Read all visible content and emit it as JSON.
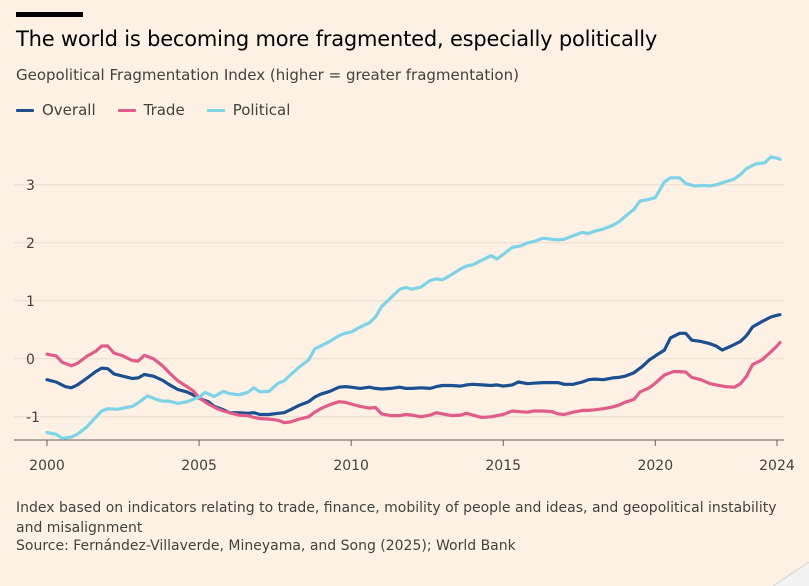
{
  "header": {
    "title": "The world is becoming more fragmented, especially politically",
    "subtitle": "Geopolitical Fragmentation Index (higher = greater fragmentation)"
  },
  "footer": {
    "note": "Index based on indicators relating to trade, finance, mobility of people and ideas, and geopolitical instability and misalignment",
    "source": "Source: Fernández-Villaverde, Mineyama, and Song (2025); World Bank"
  },
  "chart_data": {
    "type": "line",
    "xlim": [
      2000,
      2024.1
    ],
    "ylim": [
      -1.4,
      3.6
    ],
    "x_ticks": [
      2000,
      2005,
      2010,
      2015,
      2020,
      2024
    ],
    "x_tick_labels": [
      "2000",
      "2005",
      "2010",
      "2015",
      "2020",
      "2024"
    ],
    "y_ticks": [
      -1,
      0,
      1,
      2,
      3
    ],
    "y_tick_labels": [
      "-1",
      "0",
      "1",
      "2",
      "3"
    ],
    "grid": "horizontal",
    "legend_position": "top-left",
    "series": [
      {
        "name": "Overall",
        "color": "#1c4f8f",
        "points": [
          [
            2000,
            -0.36
          ],
          [
            2000.3,
            -0.4
          ],
          [
            2000.6,
            -0.48
          ],
          [
            2000.8,
            -0.5
          ],
          [
            2001,
            -0.45
          ],
          [
            2001.3,
            -0.34
          ],
          [
            2001.6,
            -0.22
          ],
          [
            2001.8,
            -0.16
          ],
          [
            2002,
            -0.17
          ],
          [
            2002.2,
            -0.26
          ],
          [
            2002.5,
            -0.3
          ],
          [
            2002.8,
            -0.34
          ],
          [
            2003,
            -0.33
          ],
          [
            2003.2,
            -0.27
          ],
          [
            2003.5,
            -0.3
          ],
          [
            2003.8,
            -0.37
          ],
          [
            2004,
            -0.44
          ],
          [
            2004.3,
            -0.53
          ],
          [
            2004.6,
            -0.57
          ],
          [
            2004.8,
            -0.62
          ],
          [
            2005,
            -0.68
          ],
          [
            2005.3,
            -0.74
          ],
          [
            2005.5,
            -0.82
          ],
          [
            2005.8,
            -0.88
          ],
          [
            2006,
            -0.93
          ],
          [
            2006.3,
            -0.93
          ],
          [
            2006.6,
            -0.94
          ],
          [
            2006.8,
            -0.93
          ],
          [
            2007,
            -0.96
          ],
          [
            2007.3,
            -0.96
          ],
          [
            2007.6,
            -0.94
          ],
          [
            2007.8,
            -0.93
          ],
          [
            2008,
            -0.88
          ],
          [
            2008.3,
            -0.8
          ],
          [
            2008.6,
            -0.74
          ],
          [
            2008.8,
            -0.66
          ],
          [
            2009,
            -0.61
          ],
          [
            2009.3,
            -0.56
          ],
          [
            2009.6,
            -0.49
          ],
          [
            2009.8,
            -0.48
          ],
          [
            2010,
            -0.49
          ],
          [
            2010.3,
            -0.51
          ],
          [
            2010.6,
            -0.49
          ],
          [
            2010.8,
            -0.51
          ],
          [
            2011,
            -0.52
          ],
          [
            2011.3,
            -0.51
          ],
          [
            2011.6,
            -0.49
          ],
          [
            2011.8,
            -0.51
          ],
          [
            2012,
            -0.51
          ],
          [
            2012.3,
            -0.5
          ],
          [
            2012.6,
            -0.51
          ],
          [
            2012.8,
            -0.48
          ],
          [
            2013,
            -0.46
          ],
          [
            2013.3,
            -0.46
          ],
          [
            2013.6,
            -0.47
          ],
          [
            2013.8,
            -0.45
          ],
          [
            2014,
            -0.44
          ],
          [
            2014.3,
            -0.45
          ],
          [
            2014.6,
            -0.46
          ],
          [
            2014.8,
            -0.45
          ],
          [
            2015,
            -0.47
          ],
          [
            2015.3,
            -0.45
          ],
          [
            2015.5,
            -0.4
          ],
          [
            2015.8,
            -0.43
          ],
          [
            2016,
            -0.42
          ],
          [
            2016.3,
            -0.41
          ],
          [
            2016.6,
            -0.41
          ],
          [
            2016.8,
            -0.41
          ],
          [
            2017,
            -0.44
          ],
          [
            2017.3,
            -0.44
          ],
          [
            2017.6,
            -0.4
          ],
          [
            2017.8,
            -0.36
          ],
          [
            2018,
            -0.35
          ],
          [
            2018.3,
            -0.36
          ],
          [
            2018.6,
            -0.33
          ],
          [
            2018.8,
            -0.32
          ],
          [
            2019,
            -0.3
          ],
          [
            2019.3,
            -0.24
          ],
          [
            2019.6,
            -0.12
          ],
          [
            2019.8,
            -0.02
          ],
          [
            2020,
            0.05
          ],
          [
            2020.3,
            0.15
          ],
          [
            2020.5,
            0.36
          ],
          [
            2020.8,
            0.44
          ],
          [
            2021,
            0.44
          ],
          [
            2021.2,
            0.32
          ],
          [
            2021.5,
            0.3
          ],
          [
            2021.8,
            0.26
          ],
          [
            2022,
            0.22
          ],
          [
            2022.2,
            0.15
          ],
          [
            2022.5,
            0.22
          ],
          [
            2022.8,
            0.3
          ],
          [
            2023,
            0.4
          ],
          [
            2023.2,
            0.55
          ],
          [
            2023.5,
            0.64
          ],
          [
            2023.8,
            0.72
          ],
          [
            2024,
            0.75
          ],
          [
            2024.1,
            0.76
          ]
        ]
      },
      {
        "name": "Trade",
        "color": "#e05d8a",
        "points": [
          [
            2000,
            0.08
          ],
          [
            2000.3,
            0.05
          ],
          [
            2000.5,
            -0.06
          ],
          [
            2000.8,
            -0.12
          ],
          [
            2001,
            -0.08
          ],
          [
            2001.3,
            0.04
          ],
          [
            2001.6,
            0.13
          ],
          [
            2001.8,
            0.22
          ],
          [
            2002,
            0.22
          ],
          [
            2002.2,
            0.1
          ],
          [
            2002.5,
            0.05
          ],
          [
            2002.8,
            -0.03
          ],
          [
            2003,
            -0.04
          ],
          [
            2003.2,
            0.06
          ],
          [
            2003.5,
            0.0
          ],
          [
            2003.8,
            -0.12
          ],
          [
            2004,
            -0.23
          ],
          [
            2004.3,
            -0.38
          ],
          [
            2004.6,
            -0.48
          ],
          [
            2004.8,
            -0.55
          ],
          [
            2005,
            -0.67
          ],
          [
            2005.3,
            -0.78
          ],
          [
            2005.6,
            -0.86
          ],
          [
            2005.8,
            -0.9
          ],
          [
            2006,
            -0.93
          ],
          [
            2006.3,
            -0.97
          ],
          [
            2006.6,
            -0.98
          ],
          [
            2006.8,
            -1.01
          ],
          [
            2007,
            -1.03
          ],
          [
            2007.3,
            -1.04
          ],
          [
            2007.6,
            -1.06
          ],
          [
            2007.8,
            -1.1
          ],
          [
            2008,
            -1.09
          ],
          [
            2008.3,
            -1.04
          ],
          [
            2008.6,
            -1.0
          ],
          [
            2008.8,
            -0.92
          ],
          [
            2009,
            -0.86
          ],
          [
            2009.3,
            -0.79
          ],
          [
            2009.6,
            -0.74
          ],
          [
            2009.8,
            -0.75
          ],
          [
            2010,
            -0.78
          ],
          [
            2010.3,
            -0.82
          ],
          [
            2010.6,
            -0.85
          ],
          [
            2010.8,
            -0.84
          ],
          [
            2011,
            -0.95
          ],
          [
            2011.3,
            -0.98
          ],
          [
            2011.6,
            -0.98
          ],
          [
            2011.8,
            -0.96
          ],
          [
            2012,
            -0.97
          ],
          [
            2012.3,
            -1.0
          ],
          [
            2012.6,
            -0.97
          ],
          [
            2012.8,
            -0.93
          ],
          [
            2013,
            -0.95
          ],
          [
            2013.3,
            -0.98
          ],
          [
            2013.6,
            -0.97
          ],
          [
            2013.8,
            -0.94
          ],
          [
            2014,
            -0.97
          ],
          [
            2014.3,
            -1.01
          ],
          [
            2014.6,
            -1.0
          ],
          [
            2014.8,
            -0.98
          ],
          [
            2015,
            -0.96
          ],
          [
            2015.3,
            -0.9
          ],
          [
            2015.5,
            -0.91
          ],
          [
            2015.8,
            -0.92
          ],
          [
            2016,
            -0.9
          ],
          [
            2016.3,
            -0.9
          ],
          [
            2016.6,
            -0.91
          ],
          [
            2016.8,
            -0.95
          ],
          [
            2017,
            -0.96
          ],
          [
            2017.3,
            -0.92
          ],
          [
            2017.6,
            -0.89
          ],
          [
            2017.8,
            -0.89
          ],
          [
            2018,
            -0.88
          ],
          [
            2018.3,
            -0.86
          ],
          [
            2018.6,
            -0.83
          ],
          [
            2018.8,
            -0.8
          ],
          [
            2019,
            -0.75
          ],
          [
            2019.3,
            -0.7
          ],
          [
            2019.5,
            -0.57
          ],
          [
            2019.8,
            -0.5
          ],
          [
            2020,
            -0.42
          ],
          [
            2020.3,
            -0.28
          ],
          [
            2020.6,
            -0.22
          ],
          [
            2020.8,
            -0.22
          ],
          [
            2021,
            -0.23
          ],
          [
            2021.2,
            -0.32
          ],
          [
            2021.5,
            -0.36
          ],
          [
            2021.8,
            -0.43
          ],
          [
            2022,
            -0.45
          ],
          [
            2022.3,
            -0.48
          ],
          [
            2022.6,
            -0.49
          ],
          [
            2022.8,
            -0.43
          ],
          [
            2023,
            -0.3
          ],
          [
            2023.2,
            -0.1
          ],
          [
            2023.5,
            -0.02
          ],
          [
            2023.8,
            0.12
          ],
          [
            2024,
            0.22
          ],
          [
            2024.1,
            0.28
          ]
        ]
      },
      {
        "name": "Political",
        "color": "#7ed3e6",
        "points": [
          [
            2000,
            -1.27
          ],
          [
            2000.3,
            -1.3
          ],
          [
            2000.5,
            -1.37
          ],
          [
            2000.8,
            -1.35
          ],
          [
            2001,
            -1.3
          ],
          [
            2001.3,
            -1.18
          ],
          [
            2001.6,
            -1.01
          ],
          [
            2001.8,
            -0.9
          ],
          [
            2002,
            -0.86
          ],
          [
            2002.3,
            -0.87
          ],
          [
            2002.6,
            -0.84
          ],
          [
            2002.8,
            -0.82
          ],
          [
            2003,
            -0.76
          ],
          [
            2003.3,
            -0.64
          ],
          [
            2003.6,
            -0.7
          ],
          [
            2003.8,
            -0.73
          ],
          [
            2004,
            -0.73
          ],
          [
            2004.3,
            -0.77
          ],
          [
            2004.6,
            -0.74
          ],
          [
            2004.8,
            -0.7
          ],
          [
            2005,
            -0.66
          ],
          [
            2005.2,
            -0.58
          ],
          [
            2005.5,
            -0.65
          ],
          [
            2005.8,
            -0.56
          ],
          [
            2006,
            -0.6
          ],
          [
            2006.3,
            -0.62
          ],
          [
            2006.6,
            -0.58
          ],
          [
            2006.8,
            -0.5
          ],
          [
            2007,
            -0.57
          ],
          [
            2007.3,
            -0.56
          ],
          [
            2007.6,
            -0.42
          ],
          [
            2007.8,
            -0.38
          ],
          [
            2008,
            -0.28
          ],
          [
            2008.3,
            -0.14
          ],
          [
            2008.6,
            -0.02
          ],
          [
            2008.8,
            0.17
          ],
          [
            2009,
            0.22
          ],
          [
            2009.3,
            0.3
          ],
          [
            2009.6,
            0.4
          ],
          [
            2009.8,
            0.44
          ],
          [
            2010,
            0.46
          ],
          [
            2010.3,
            0.55
          ],
          [
            2010.6,
            0.62
          ],
          [
            2010.8,
            0.72
          ],
          [
            2011,
            0.9
          ],
          [
            2011.3,
            1.05
          ],
          [
            2011.6,
            1.2
          ],
          [
            2011.8,
            1.23
          ],
          [
            2012,
            1.2
          ],
          [
            2012.3,
            1.24
          ],
          [
            2012.6,
            1.35
          ],
          [
            2012.8,
            1.38
          ],
          [
            2013,
            1.36
          ],
          [
            2013.3,
            1.45
          ],
          [
            2013.6,
            1.55
          ],
          [
            2013.8,
            1.6
          ],
          [
            2014,
            1.62
          ],
          [
            2014.3,
            1.7
          ],
          [
            2014.6,
            1.78
          ],
          [
            2014.8,
            1.72
          ],
          [
            2015,
            1.8
          ],
          [
            2015.3,
            1.92
          ],
          [
            2015.6,
            1.95
          ],
          [
            2015.8,
            2.0
          ],
          [
            2016,
            2.02
          ],
          [
            2016.3,
            2.08
          ],
          [
            2016.6,
            2.06
          ],
          [
            2016.8,
            2.05
          ],
          [
            2017,
            2.06
          ],
          [
            2017.3,
            2.12
          ],
          [
            2017.6,
            2.18
          ],
          [
            2017.8,
            2.16
          ],
          [
            2018,
            2.2
          ],
          [
            2018.3,
            2.24
          ],
          [
            2018.6,
            2.3
          ],
          [
            2018.8,
            2.36
          ],
          [
            2019,
            2.45
          ],
          [
            2019.3,
            2.58
          ],
          [
            2019.5,
            2.72
          ],
          [
            2019.8,
            2.75
          ],
          [
            2020,
            2.78
          ],
          [
            2020.3,
            3.05
          ],
          [
            2020.5,
            3.12
          ],
          [
            2020.8,
            3.12
          ],
          [
            2021,
            3.02
          ],
          [
            2021.3,
            2.98
          ],
          [
            2021.6,
            2.99
          ],
          [
            2021.8,
            2.98
          ],
          [
            2022,
            3.0
          ],
          [
            2022.3,
            3.05
          ],
          [
            2022.6,
            3.1
          ],
          [
            2022.8,
            3.18
          ],
          [
            2023,
            3.28
          ],
          [
            2023.3,
            3.36
          ],
          [
            2023.6,
            3.38
          ],
          [
            2023.8,
            3.48
          ],
          [
            2024,
            3.46
          ],
          [
            2024.1,
            3.44
          ]
        ]
      }
    ]
  }
}
